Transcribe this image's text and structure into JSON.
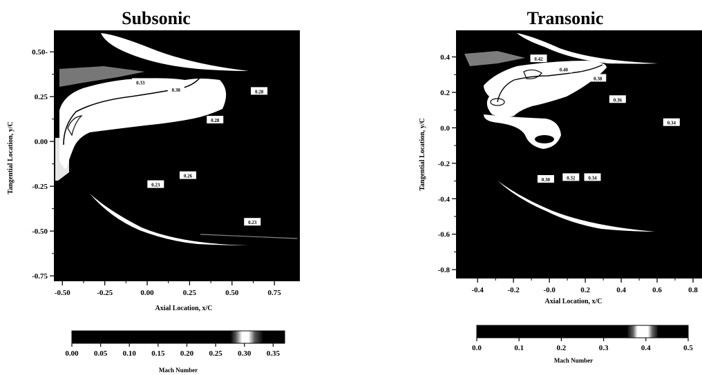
{
  "chart_data": [
    {
      "type": "heatmap",
      "title": "Subsonic",
      "xlabel": "Axial Location, x/C",
      "ylabel": "Tangential Location, y/C",
      "xlim": [
        -0.55,
        0.9
      ],
      "ylim": [
        -0.78,
        0.62
      ],
      "xticks": [
        -0.5,
        -0.25,
        0.0,
        0.25,
        0.5,
        0.75
      ],
      "xtick_labels": [
        "-0.50",
        "-0.25",
        "0.00",
        "0.25",
        "0.50",
        "0.75"
      ],
      "yticks": [
        0.5,
        0.25,
        0.0,
        -0.25,
        -0.5,
        -0.75
      ],
      "ytick_labels": [
        "0.50-",
        "0.25",
        "0.00",
        "-0.25",
        "-0.50",
        "-0.75"
      ],
      "colorbar": {
        "label": "Mach Number",
        "range": [
          0.0,
          0.37
        ],
        "ticks": [
          "0.00",
          "0.05",
          "0.10",
          "0.15",
          "0.20",
          "0.25",
          "0.30",
          "0.35"
        ]
      },
      "contour_labels": [
        {
          "text": "0.33",
          "x": -0.04,
          "y": 0.33
        },
        {
          "text": "0.30",
          "x": 0.17,
          "y": 0.29
        },
        {
          "text": "0.28",
          "x": 0.66,
          "y": 0.28
        },
        {
          "text": "0.28",
          "x": 0.4,
          "y": 0.12
        },
        {
          "text": "0.26",
          "x": 0.24,
          "y": -0.19
        },
        {
          "text": "0.23",
          "x": 0.05,
          "y": -0.24
        },
        {
          "text": "0.23",
          "x": 0.62,
          "y": -0.45
        }
      ]
    },
    {
      "type": "heatmap",
      "title": "Transonic",
      "xlabel": "Axial Location, x/C",
      "ylabel": "Tangential Location, y/C",
      "xlim": [
        -0.52,
        0.85
      ],
      "ylim": [
        -0.85,
        0.55
      ],
      "xticks": [
        -0.4,
        -0.2,
        0.0,
        0.2,
        0.4,
        0.6,
        0.8
      ],
      "xtick_labels": [
        "-0.4",
        "-0.2",
        "-0.0",
        "0.2",
        "0.4",
        "0.6",
        "0.8"
      ],
      "yticks": [
        0.4,
        0.2,
        0.0,
        -0.2,
        -0.4,
        -0.6,
        -0.8
      ],
      "ytick_labels": [
        "0.4",
        "0.2",
        "0.0",
        "-0.2",
        "-0.4",
        "-0.6",
        "-0.8"
      ],
      "colorbar": {
        "label": "Mach Number",
        "range": [
          0.0,
          0.5
        ],
        "ticks": [
          "0.0",
          "0.1",
          "0.2",
          "0.3",
          "0.4",
          "0.5"
        ]
      },
      "contour_labels": [
        {
          "text": "0.42",
          "x": -0.06,
          "y": 0.39
        },
        {
          "text": "0.40",
          "x": 0.08,
          "y": 0.33
        },
        {
          "text": "0.38",
          "x": 0.27,
          "y": 0.28
        },
        {
          "text": "0.36",
          "x": 0.38,
          "y": 0.16
        },
        {
          "text": "0.34",
          "x": 0.68,
          "y": 0.03
        },
        {
          "text": "0.30",
          "x": -0.02,
          "y": -0.29
        },
        {
          "text": "0.32",
          "x": 0.12,
          "y": -0.28
        },
        {
          "text": "0.34",
          "x": 0.24,
          "y": -0.28
        }
      ]
    }
  ]
}
